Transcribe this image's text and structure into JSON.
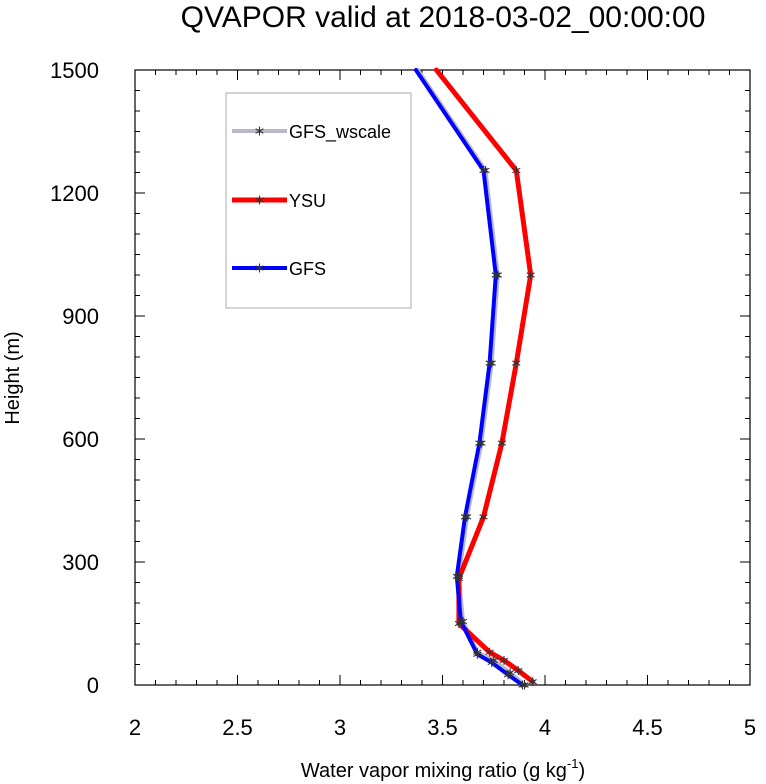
{
  "chart_data": {
    "type": "line",
    "title": "QVAPOR valid at 2018-03-02_00:00:00",
    "xlabel": "Water vapor mixing ratio (g kg",
    "xlabel_sup": "-1",
    "xlabel_tail": ")",
    "ylabel": "Height (m)",
    "xlim": [
      2,
      5
    ],
    "ylim": [
      0,
      1500
    ],
    "x_ticks": [
      2,
      2.5,
      3,
      3.5,
      4,
      4.5,
      5
    ],
    "x_tick_labels": [
      "2",
      "2.5",
      "3",
      "3.5",
      "4",
      "4.5",
      "5"
    ],
    "y_ticks": [
      0,
      300,
      600,
      900,
      1200,
      1500
    ],
    "y_tick_labels": [
      "0",
      "300",
      "600",
      "900",
      "1200",
      "1500"
    ],
    "grid": false,
    "legend_position": "top-left",
    "series": [
      {
        "name": "GFS_wscale",
        "color": "#b8b8c8",
        "points": [
          [
            3.9,
            0
          ],
          [
            3.83,
            30
          ],
          [
            3.75,
            60
          ],
          [
            3.67,
            80
          ],
          [
            3.6,
            155
          ],
          [
            3.58,
            265
          ],
          [
            3.62,
            410
          ],
          [
            3.69,
            590
          ],
          [
            3.74,
            785
          ],
          [
            3.77,
            1000
          ],
          [
            3.71,
            1255
          ],
          [
            3.38,
            1500
          ]
        ]
      },
      {
        "name": "YSU",
        "color": "#ff0000",
        "points": [
          [
            3.94,
            8
          ],
          [
            3.87,
            35
          ],
          [
            3.8,
            60
          ],
          [
            3.73,
            80
          ],
          [
            3.58,
            150
          ],
          [
            3.58,
            260
          ],
          [
            3.7,
            410
          ],
          [
            3.79,
            590
          ],
          [
            3.86,
            785
          ],
          [
            3.93,
            1000
          ],
          [
            3.86,
            1255
          ],
          [
            3.47,
            1500
          ]
        ]
      },
      {
        "name": "GFS",
        "color": "#0000ff",
        "points": [
          [
            3.89,
            0
          ],
          [
            3.82,
            25
          ],
          [
            3.74,
            55
          ],
          [
            3.67,
            75
          ],
          [
            3.59,
            155
          ],
          [
            3.57,
            265
          ],
          [
            3.61,
            410
          ],
          [
            3.68,
            590
          ],
          [
            3.73,
            785
          ],
          [
            3.76,
            1000
          ],
          [
            3.7,
            1255
          ],
          [
            3.37,
            1500
          ]
        ]
      }
    ],
    "legend_order": [
      "GFS_wscale",
      "YSU",
      "GFS"
    ]
  }
}
